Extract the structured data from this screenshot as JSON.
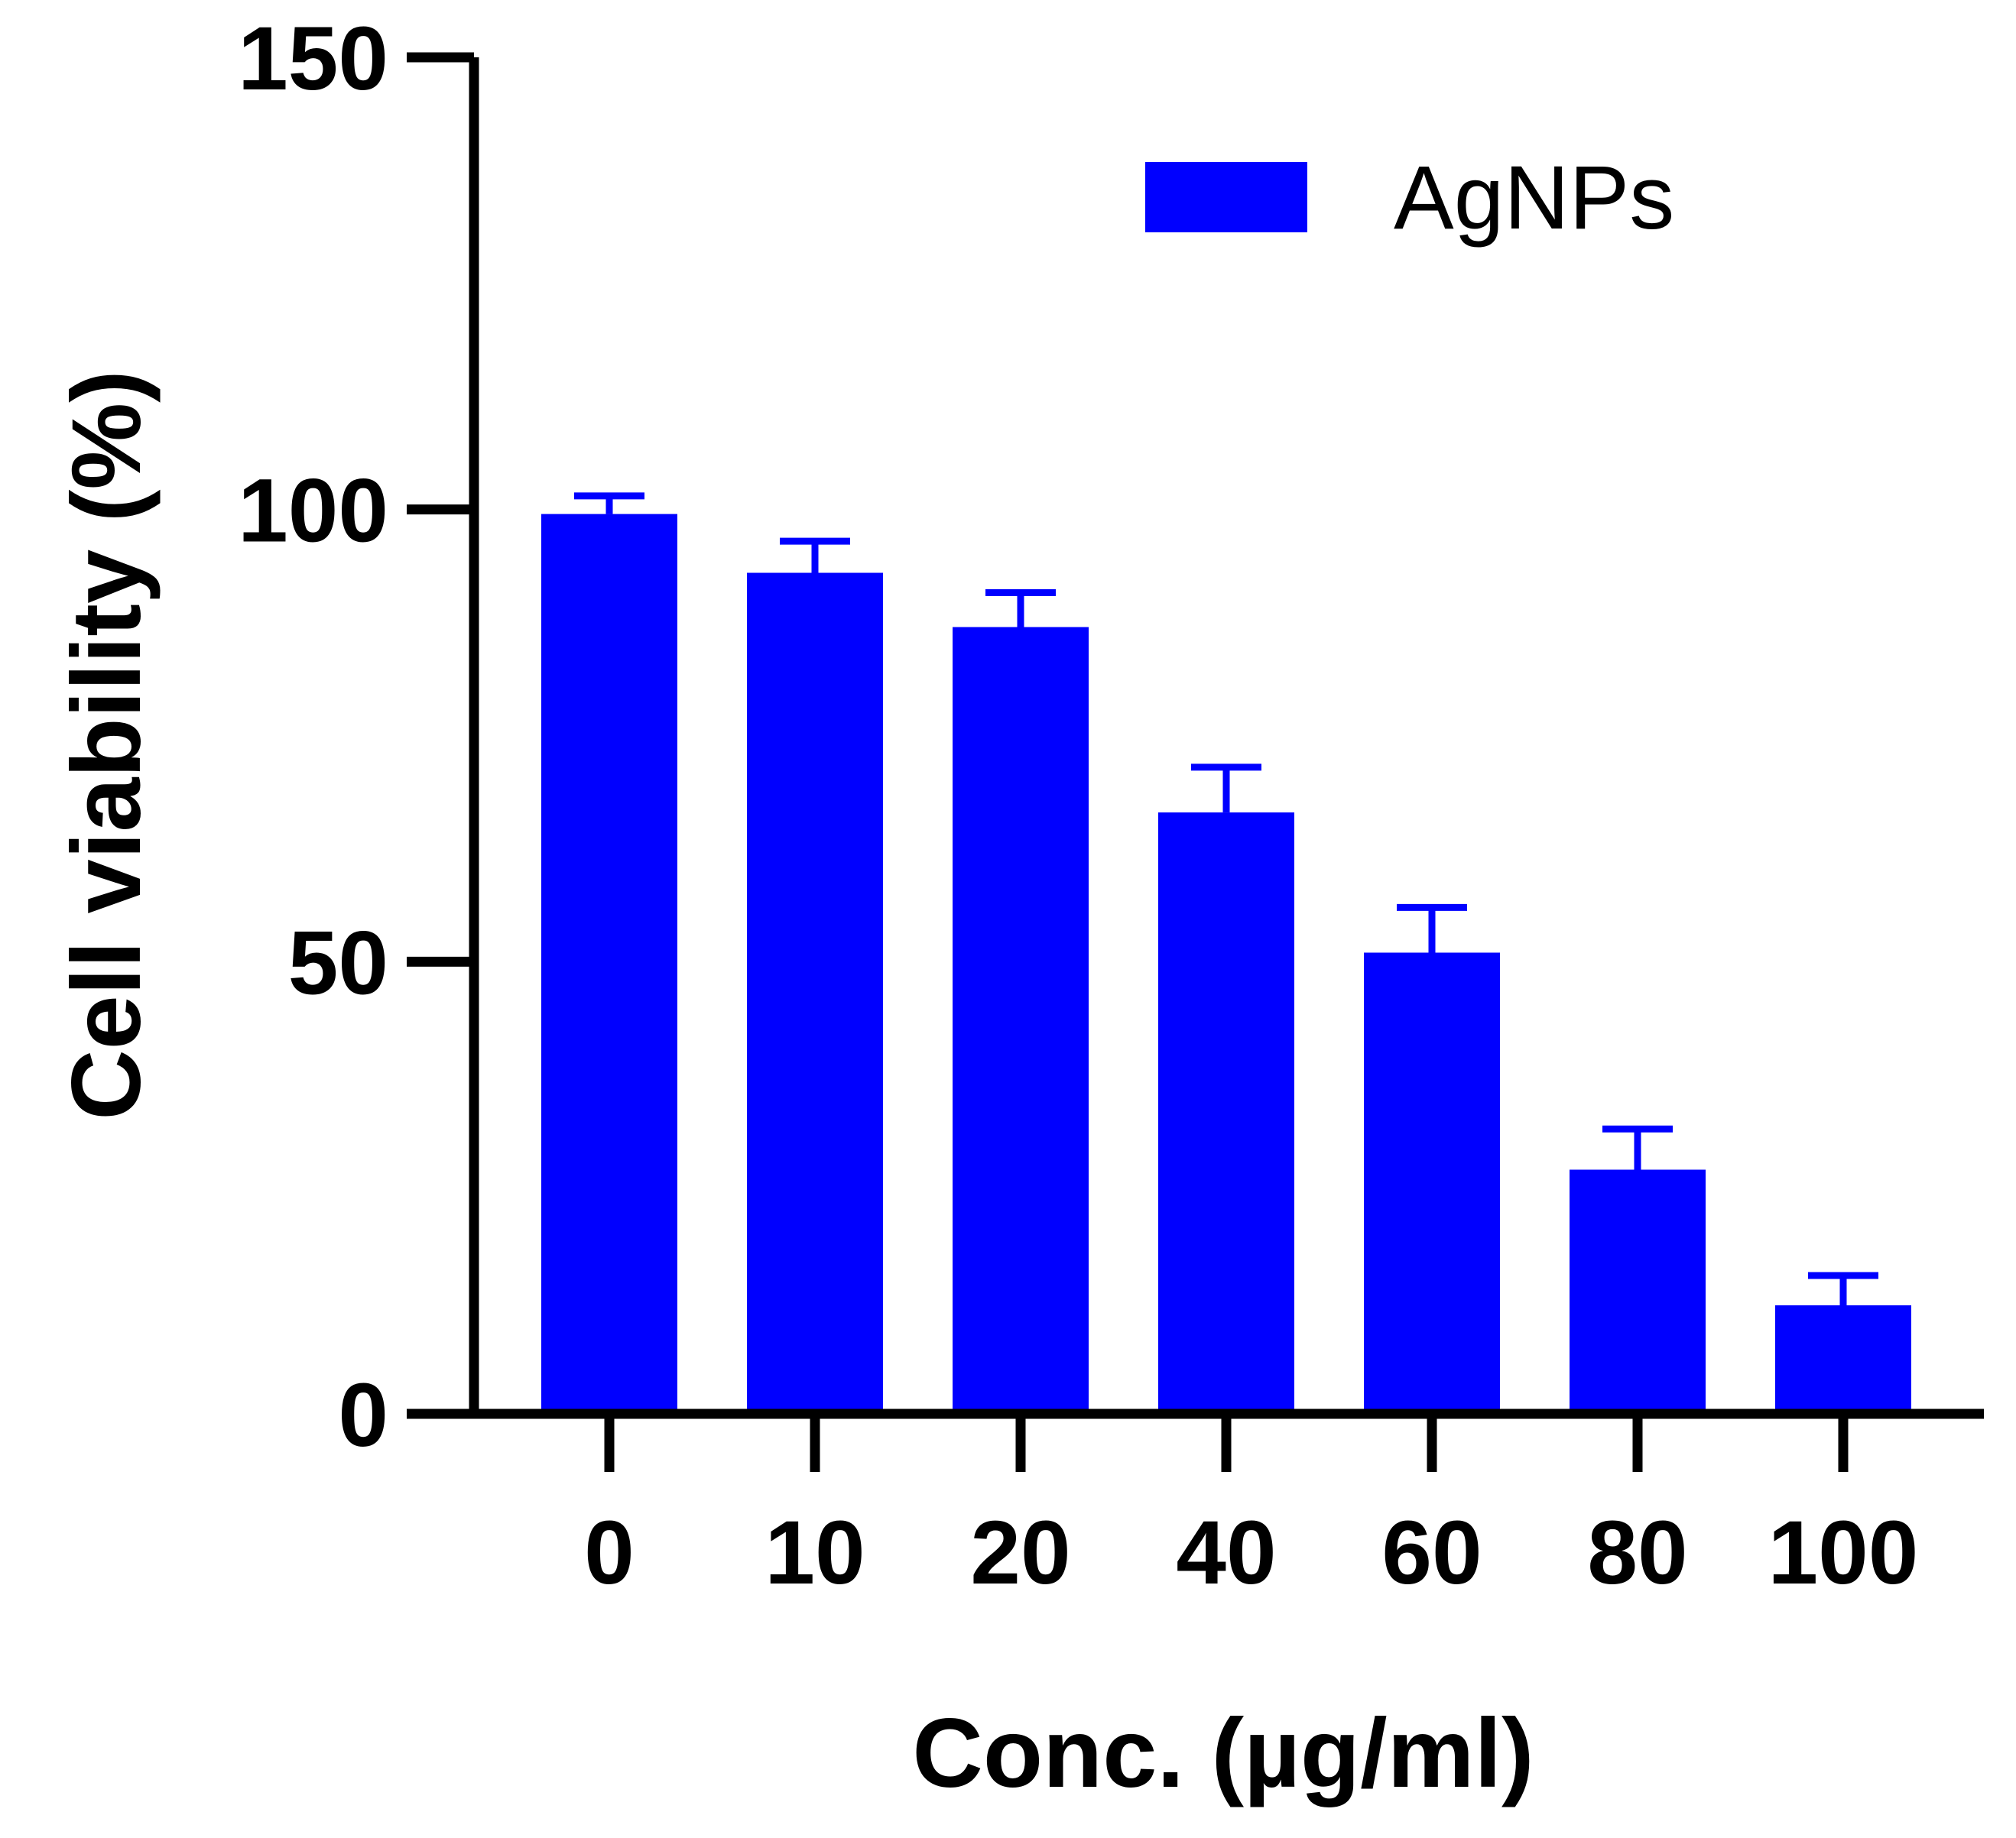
{
  "chart_data": {
    "type": "bar",
    "title": "",
    "xlabel": "Conc. (µg/ml)",
    "ylabel": "Cell viability (%)",
    "categories": [
      "0",
      "10",
      "20",
      "40",
      "60",
      "80",
      "100"
    ],
    "series": [
      {
        "name": "AgNPs",
        "color": "#0000FF",
        "values": [
          99.5,
          93,
          87,
          66.5,
          51,
          27,
          12
        ],
        "error": [
          2,
          3.5,
          3.8,
          5,
          5,
          4.5,
          3.3
        ]
      }
    ],
    "ylim": [
      0,
      150
    ],
    "yticks": [
      "0",
      "50",
      "100",
      "150"
    ],
    "grid": false,
    "legend": {
      "position": "top-right",
      "entries": [
        "AgNPs"
      ]
    }
  }
}
